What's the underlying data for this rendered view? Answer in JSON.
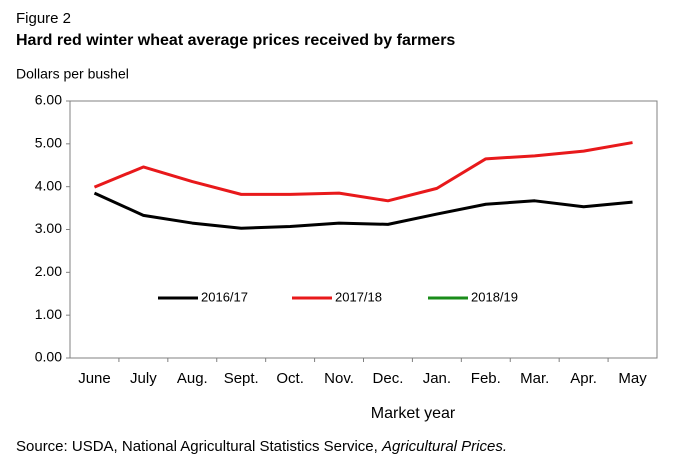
{
  "chart_data": {
    "type": "line",
    "figure_label": "Figure 2",
    "title": "Hard red winter wheat average prices received by farmers",
    "ylabel": "Dollars per bushel",
    "xlabel": "Market year",
    "source": [
      "Source: USDA, National Agricultural Statistics Service, ",
      "Agricultural Prices."
    ],
    "categories": [
      "June",
      "July",
      "Aug.",
      "Sept.",
      "Oct.",
      "Nov.",
      "Dec.",
      "Jan.",
      "Feb.",
      "Mar.",
      "Apr.",
      "May"
    ],
    "series": [
      {
        "name": "2016/17",
        "color": "#000000",
        "values": [
          3.85,
          3.33,
          3.15,
          3.03,
          3.07,
          3.15,
          3.12,
          3.36,
          3.59,
          3.67,
          3.53,
          3.64
        ]
      },
      {
        "name": "2017/18",
        "color": "#e8191b",
        "values": [
          3.99,
          4.46,
          4.12,
          3.82,
          3.82,
          3.85,
          3.67,
          3.96,
          4.65,
          4.72,
          4.83,
          5.03
        ]
      },
      {
        "name": "2018/19",
        "color": "#1a8c1a",
        "values": [
          null,
          null,
          null,
          null,
          null,
          null,
          null,
          null,
          null,
          null,
          null,
          null
        ]
      }
    ],
    "ylim": [
      0,
      6
    ],
    "yticks": [
      {
        "value": 0,
        "label": "0.00"
      },
      {
        "value": 1,
        "label": "1.00"
      },
      {
        "value": 2,
        "label": "2.00"
      },
      {
        "value": 3,
        "label": "3.00"
      },
      {
        "value": 4,
        "label": "4.00"
      },
      {
        "value": 5,
        "label": "5.00"
      },
      {
        "value": 6,
        "label": "6.00"
      }
    ],
    "grid": false,
    "legend": "inside-bottom"
  }
}
